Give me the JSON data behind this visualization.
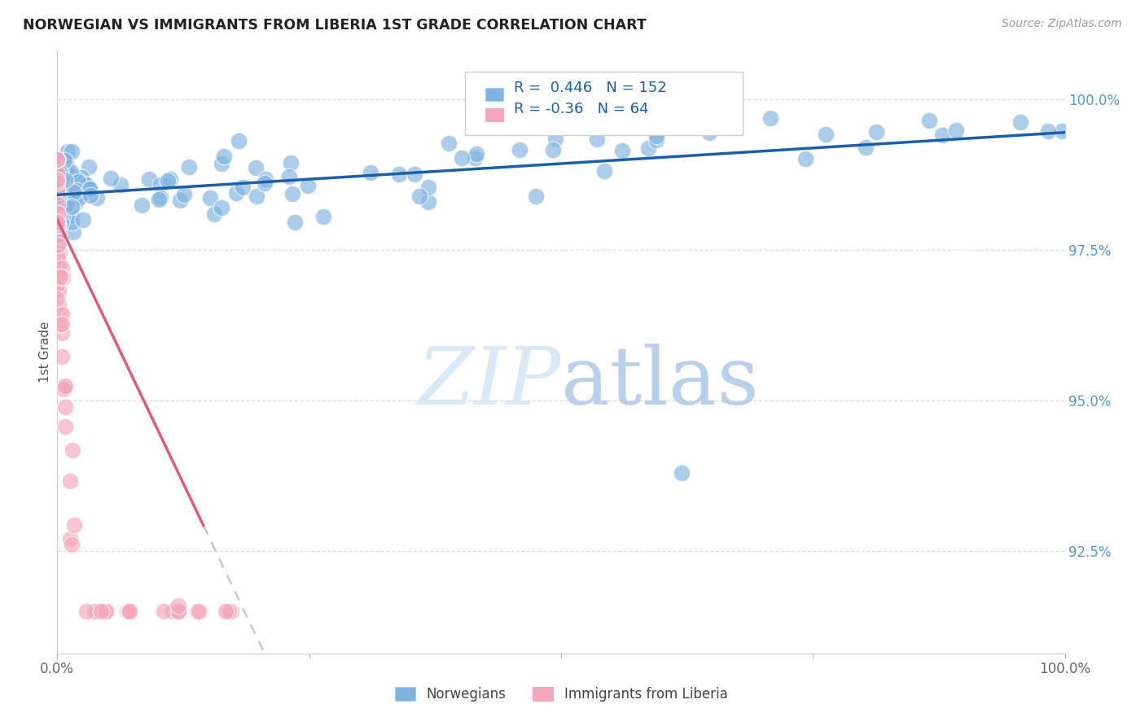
{
  "title": "NORWEGIAN VS IMMIGRANTS FROM LIBERIA 1ST GRADE CORRELATION CHART",
  "source": "Source: ZipAtlas.com",
  "ylabel": "1st Grade",
  "ytick_labels": [
    "100.0%",
    "97.5%",
    "95.0%",
    "92.5%"
  ],
  "ytick_values": [
    1.0,
    0.975,
    0.95,
    0.925
  ],
  "xrange": [
    0.0,
    1.0
  ],
  "yrange": [
    0.908,
    1.008
  ],
  "norwegian_R": 0.446,
  "norwegian_N": 152,
  "liberia_R": -0.36,
  "liberia_N": 64,
  "norwegian_color": "#7eb3e0",
  "liberia_color": "#f4a7b9",
  "norwegian_line_color": "#1a5fa8",
  "liberia_line_color": "#e05a7a",
  "liberia_dash_color": "#c8c8c8",
  "background_color": "#ffffff",
  "watermark_zip": "ZIP",
  "watermark_atlas": "atlas",
  "watermark_color_zip": "#ccdff5",
  "watermark_color_atlas": "#b8d4f0",
  "legend_norwegian": "Norwegians",
  "legend_liberia": "Immigrants from Liberia"
}
